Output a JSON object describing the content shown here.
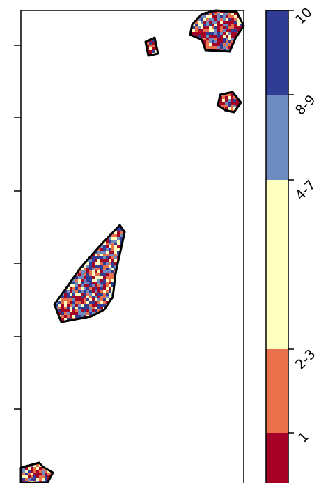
{
  "map": {
    "axis_ticks": {
      "y_tick_count": 6
    },
    "palette": {
      "class_1": "#a50026",
      "class_2_3": "#e8714b",
      "class_4_7": "#ffffc0",
      "class_8_9": "#6f8cc0",
      "class_10": "#313d95"
    },
    "outline_color": "#000000"
  },
  "legend": {
    "items": [
      {
        "label": "10",
        "color": "#313d95"
      },
      {
        "label": "8-9",
        "color": "#6f8cc0"
      },
      {
        "label": "4-7",
        "color": "#ffffc0"
      },
      {
        "label": "2-3",
        "color": "#e8714b"
      },
      {
        "label": "1",
        "color": "#a50026"
      }
    ]
  }
}
